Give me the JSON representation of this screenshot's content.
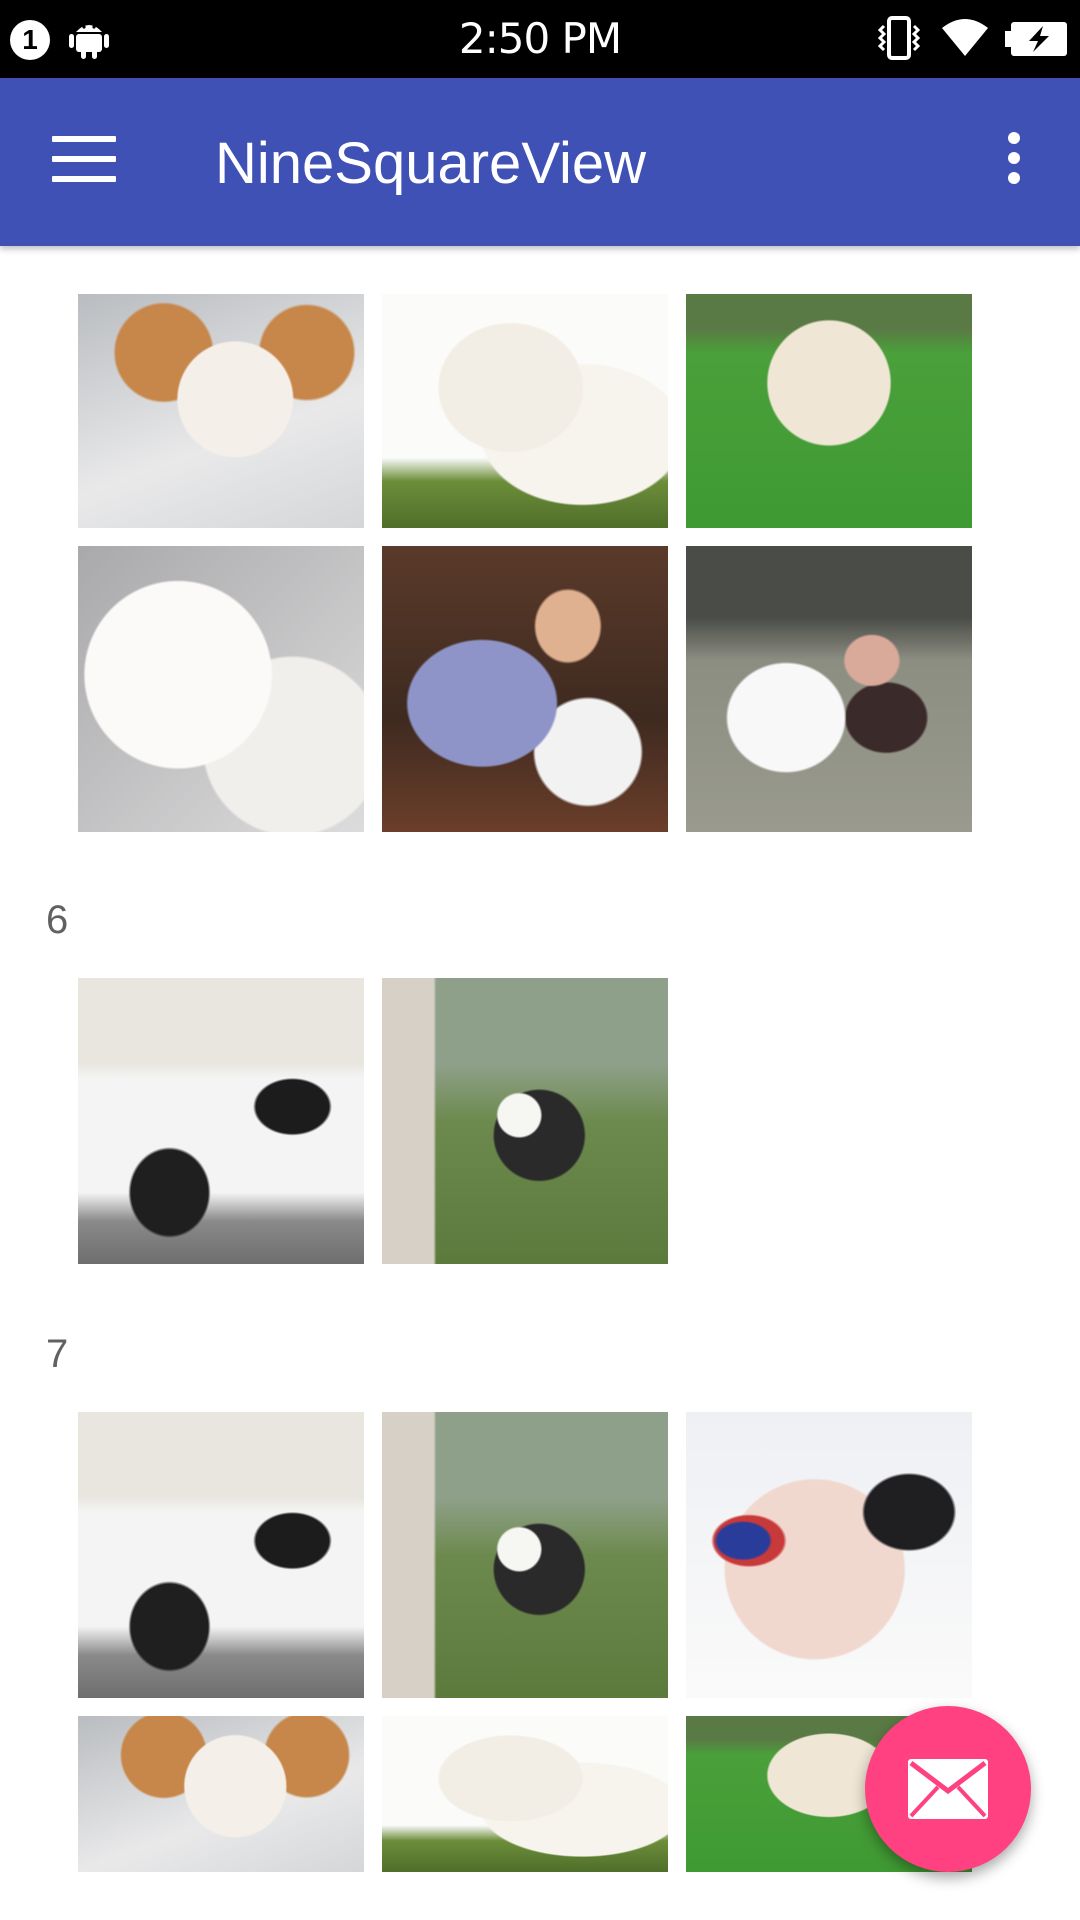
{
  "status_bar": {
    "notification_count": "1",
    "time": "2:50 PM",
    "icons": [
      "android-icon",
      "vibrate-icon",
      "wifi-icon",
      "battery-charging-icon"
    ]
  },
  "app_bar": {
    "title": "NineSquareView",
    "color": "#3F51B5",
    "left_icon": "menu-icon",
    "right_icon": "more-vert-icon"
  },
  "feed": [
    {
      "number": "",
      "images": [
        "puppy",
        "golden-puppy",
        "fluffy-dog-on-grass",
        "white-fluffy-dog",
        "baby-with-husky",
        "woman-with-samoyed"
      ]
    },
    {
      "number": "6",
      "images": [
        "woman-with-car",
        "woman-with-dog-in-park"
      ]
    },
    {
      "number": "7",
      "images": [
        "woman-with-car",
        "woman-with-dog-in-park",
        "woman-lying",
        "puppy",
        "golden-puppy",
        "fluffy-dog-on-grass"
      ]
    }
  ],
  "fab": {
    "icon": "mail-icon",
    "color": "#FF4081"
  }
}
